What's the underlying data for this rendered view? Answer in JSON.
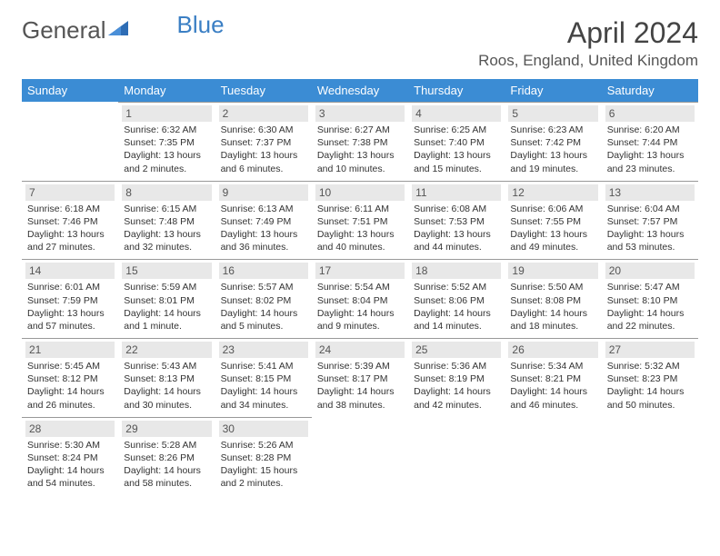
{
  "brand": {
    "part1": "General",
    "part2": "Blue"
  },
  "title": "April 2024",
  "location": "Roos, England, United Kingdom",
  "colors": {
    "header_bg": "#3b8cd4",
    "header_text": "#ffffff",
    "daynum_bg": "#e8e8e8",
    "border": "#999999",
    "brand_blue": "#3b7fc4"
  },
  "weekdays": [
    "Sunday",
    "Monday",
    "Tuesday",
    "Wednesday",
    "Thursday",
    "Friday",
    "Saturday"
  ],
  "weeks": [
    [
      null,
      {
        "n": "1",
        "sunrise": "Sunrise: 6:32 AM",
        "sunset": "Sunset: 7:35 PM",
        "day": "Daylight: 13 hours and 2 minutes."
      },
      {
        "n": "2",
        "sunrise": "Sunrise: 6:30 AM",
        "sunset": "Sunset: 7:37 PM",
        "day": "Daylight: 13 hours and 6 minutes."
      },
      {
        "n": "3",
        "sunrise": "Sunrise: 6:27 AM",
        "sunset": "Sunset: 7:38 PM",
        "day": "Daylight: 13 hours and 10 minutes."
      },
      {
        "n": "4",
        "sunrise": "Sunrise: 6:25 AM",
        "sunset": "Sunset: 7:40 PM",
        "day": "Daylight: 13 hours and 15 minutes."
      },
      {
        "n": "5",
        "sunrise": "Sunrise: 6:23 AM",
        "sunset": "Sunset: 7:42 PM",
        "day": "Daylight: 13 hours and 19 minutes."
      },
      {
        "n": "6",
        "sunrise": "Sunrise: 6:20 AM",
        "sunset": "Sunset: 7:44 PM",
        "day": "Daylight: 13 hours and 23 minutes."
      }
    ],
    [
      {
        "n": "7",
        "sunrise": "Sunrise: 6:18 AM",
        "sunset": "Sunset: 7:46 PM",
        "day": "Daylight: 13 hours and 27 minutes."
      },
      {
        "n": "8",
        "sunrise": "Sunrise: 6:15 AM",
        "sunset": "Sunset: 7:48 PM",
        "day": "Daylight: 13 hours and 32 minutes."
      },
      {
        "n": "9",
        "sunrise": "Sunrise: 6:13 AM",
        "sunset": "Sunset: 7:49 PM",
        "day": "Daylight: 13 hours and 36 minutes."
      },
      {
        "n": "10",
        "sunrise": "Sunrise: 6:11 AM",
        "sunset": "Sunset: 7:51 PM",
        "day": "Daylight: 13 hours and 40 minutes."
      },
      {
        "n": "11",
        "sunrise": "Sunrise: 6:08 AM",
        "sunset": "Sunset: 7:53 PM",
        "day": "Daylight: 13 hours and 44 minutes."
      },
      {
        "n": "12",
        "sunrise": "Sunrise: 6:06 AM",
        "sunset": "Sunset: 7:55 PM",
        "day": "Daylight: 13 hours and 49 minutes."
      },
      {
        "n": "13",
        "sunrise": "Sunrise: 6:04 AM",
        "sunset": "Sunset: 7:57 PM",
        "day": "Daylight: 13 hours and 53 minutes."
      }
    ],
    [
      {
        "n": "14",
        "sunrise": "Sunrise: 6:01 AM",
        "sunset": "Sunset: 7:59 PM",
        "day": "Daylight: 13 hours and 57 minutes."
      },
      {
        "n": "15",
        "sunrise": "Sunrise: 5:59 AM",
        "sunset": "Sunset: 8:01 PM",
        "day": "Daylight: 14 hours and 1 minute."
      },
      {
        "n": "16",
        "sunrise": "Sunrise: 5:57 AM",
        "sunset": "Sunset: 8:02 PM",
        "day": "Daylight: 14 hours and 5 minutes."
      },
      {
        "n": "17",
        "sunrise": "Sunrise: 5:54 AM",
        "sunset": "Sunset: 8:04 PM",
        "day": "Daylight: 14 hours and 9 minutes."
      },
      {
        "n": "18",
        "sunrise": "Sunrise: 5:52 AM",
        "sunset": "Sunset: 8:06 PM",
        "day": "Daylight: 14 hours and 14 minutes."
      },
      {
        "n": "19",
        "sunrise": "Sunrise: 5:50 AM",
        "sunset": "Sunset: 8:08 PM",
        "day": "Daylight: 14 hours and 18 minutes."
      },
      {
        "n": "20",
        "sunrise": "Sunrise: 5:47 AM",
        "sunset": "Sunset: 8:10 PM",
        "day": "Daylight: 14 hours and 22 minutes."
      }
    ],
    [
      {
        "n": "21",
        "sunrise": "Sunrise: 5:45 AM",
        "sunset": "Sunset: 8:12 PM",
        "day": "Daylight: 14 hours and 26 minutes."
      },
      {
        "n": "22",
        "sunrise": "Sunrise: 5:43 AM",
        "sunset": "Sunset: 8:13 PM",
        "day": "Daylight: 14 hours and 30 minutes."
      },
      {
        "n": "23",
        "sunrise": "Sunrise: 5:41 AM",
        "sunset": "Sunset: 8:15 PM",
        "day": "Daylight: 14 hours and 34 minutes."
      },
      {
        "n": "24",
        "sunrise": "Sunrise: 5:39 AM",
        "sunset": "Sunset: 8:17 PM",
        "day": "Daylight: 14 hours and 38 minutes."
      },
      {
        "n": "25",
        "sunrise": "Sunrise: 5:36 AM",
        "sunset": "Sunset: 8:19 PM",
        "day": "Daylight: 14 hours and 42 minutes."
      },
      {
        "n": "26",
        "sunrise": "Sunrise: 5:34 AM",
        "sunset": "Sunset: 8:21 PM",
        "day": "Daylight: 14 hours and 46 minutes."
      },
      {
        "n": "27",
        "sunrise": "Sunrise: 5:32 AM",
        "sunset": "Sunset: 8:23 PM",
        "day": "Daylight: 14 hours and 50 minutes."
      }
    ],
    [
      {
        "n": "28",
        "sunrise": "Sunrise: 5:30 AM",
        "sunset": "Sunset: 8:24 PM",
        "day": "Daylight: 14 hours and 54 minutes."
      },
      {
        "n": "29",
        "sunrise": "Sunrise: 5:28 AM",
        "sunset": "Sunset: 8:26 PM",
        "day": "Daylight: 14 hours and 58 minutes."
      },
      {
        "n": "30",
        "sunrise": "Sunrise: 5:26 AM",
        "sunset": "Sunset: 8:28 PM",
        "day": "Daylight: 15 hours and 2 minutes."
      },
      null,
      null,
      null,
      null
    ]
  ]
}
